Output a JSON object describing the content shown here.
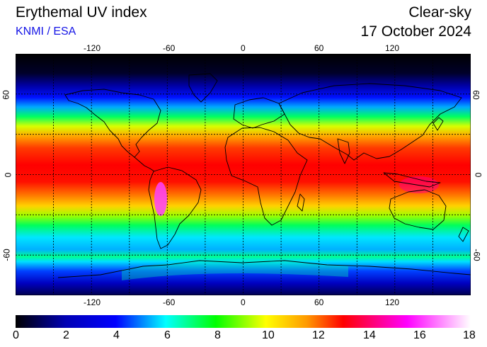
{
  "header": {
    "title": "Erythemal UV index",
    "subtitle": "KNMI / ESA",
    "mode": "Clear-sky",
    "date": "17 October 2024"
  },
  "map": {
    "projection": "equirectangular",
    "lon_range": [
      -180,
      180
    ],
    "lat_range": [
      -90,
      90
    ],
    "lon_ticks": [
      "-120",
      "-60",
      "0",
      "60",
      "120"
    ],
    "lat_ticks": [
      "60",
      "0",
      "-60"
    ],
    "grid": "dashed, every 30 degrees"
  },
  "colorbar": {
    "range": [
      0,
      18
    ],
    "labels": [
      "0",
      "2",
      "4",
      "6",
      "8",
      "10",
      "12",
      "14",
      "16",
      "18"
    ],
    "colors": [
      "#000000",
      "#0000c8",
      "#0000ff",
      "#00ffff",
      "#00ff00",
      "#ffff00",
      "#ff9900",
      "#ff0000",
      "#ff00ff",
      "#ffffff"
    ]
  }
}
